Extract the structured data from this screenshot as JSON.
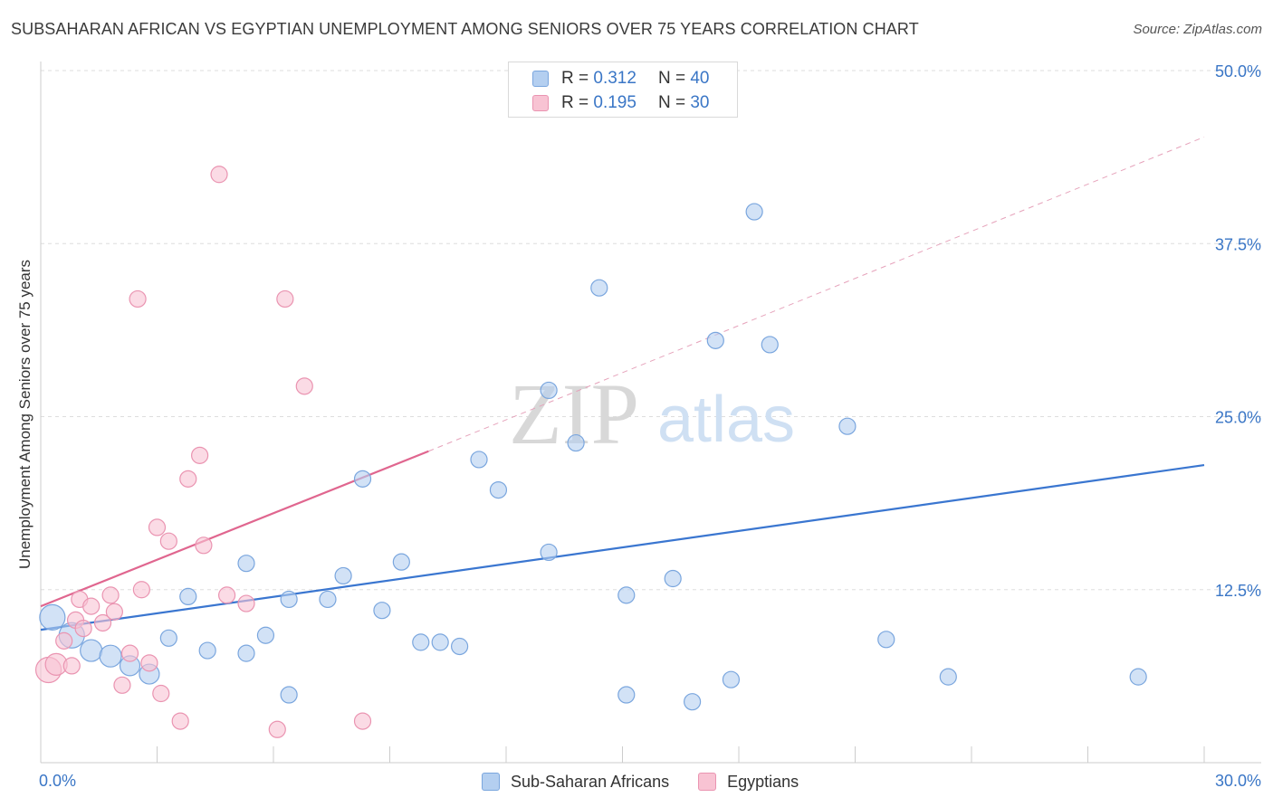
{
  "title": "SUBSAHARAN AFRICAN VS EGYPTIAN UNEMPLOYMENT AMONG SENIORS OVER 75 YEARS CORRELATION CHART",
  "source": "Source: ZipAtlas.com",
  "watermark": {
    "zip": "ZIP",
    "atlas": "atlas"
  },
  "legend": {
    "r_label": "R =",
    "n_label": "N =",
    "series": [
      {
        "r": "0.312",
        "n": "40"
      },
      {
        "r": "0.195",
        "n": "30"
      }
    ]
  },
  "chart_data": {
    "type": "scatter",
    "title": "SUBSAHARAN AFRICAN VS EGYPTIAN UNEMPLOYMENT AMONG SENIORS OVER 75 YEARS CORRELATION CHART",
    "xlabel": "",
    "ylabel": "Unemployment Among Seniors over 75 years",
    "xlim": [
      0,
      30
    ],
    "ylim": [
      0,
      50
    ],
    "x_tick_labels": [
      "0.0%",
      "30.0%"
    ],
    "y_ticks": [
      12.5,
      25,
      37.5,
      50
    ],
    "y_tick_labels": [
      "12.5%",
      "25.0%",
      "37.5%",
      "50.0%"
    ],
    "grid": true,
    "legend_position": "bottom",
    "colors": {
      "blue_fill": "#b4cff0",
      "blue_stroke": "#7aa6de",
      "blue_line": "#3a76d0",
      "pink_fill": "#f8c3d3",
      "pink_stroke": "#ea94b1",
      "pink_line": "#e0668f"
    },
    "series": [
      {
        "name": "Sub-Saharan Africans",
        "r": 0.312,
        "n": 40,
        "trend": {
          "x": [
            0,
            30
          ],
          "y": [
            9.6,
            21.5
          ],
          "dashed_extension": false
        },
        "points": [
          [
            0.3,
            10.5,
            14
          ],
          [
            0.8,
            9.2,
            14
          ],
          [
            1.3,
            8.1,
            12
          ],
          [
            1.8,
            7.7,
            12
          ],
          [
            2.3,
            7.0,
            11
          ],
          [
            2.8,
            6.4,
            11
          ],
          [
            3.3,
            9.0,
            9
          ],
          [
            3.8,
            12.0,
            9
          ],
          [
            4.3,
            8.1,
            9
          ],
          [
            5.3,
            14.4,
            9
          ],
          [
            5.3,
            7.9,
            9
          ],
          [
            5.8,
            9.2,
            9
          ],
          [
            6.4,
            4.9,
            9
          ],
          [
            6.4,
            11.8,
            9
          ],
          [
            7.4,
            11.8,
            9
          ],
          [
            7.8,
            13.5,
            9
          ],
          [
            8.3,
            20.5,
            9
          ],
          [
            8.8,
            11.0,
            9
          ],
          [
            9.3,
            14.5,
            9
          ],
          [
            9.8,
            8.7,
            9
          ],
          [
            10.3,
            8.7,
            9
          ],
          [
            10.8,
            8.4,
            9
          ],
          [
            11.3,
            21.9,
            9
          ],
          [
            11.8,
            19.7,
            9
          ],
          [
            13.1,
            15.2,
            9
          ],
          [
            13.1,
            26.9,
            9
          ],
          [
            13.8,
            23.1,
            9
          ],
          [
            14.4,
            34.3,
            9
          ],
          [
            15.1,
            12.1,
            9
          ],
          [
            15.1,
            4.9,
            9
          ],
          [
            16.3,
            13.3,
            9
          ],
          [
            16.8,
            4.4,
            9
          ],
          [
            17.4,
            30.5,
            9
          ],
          [
            17.8,
            6.0,
            9
          ],
          [
            18.4,
            39.8,
            9
          ],
          [
            18.8,
            30.2,
            9
          ],
          [
            20.8,
            24.3,
            9
          ],
          [
            21.8,
            8.9,
            9
          ],
          [
            23.4,
            6.2,
            9
          ],
          [
            28.3,
            6.2,
            9
          ]
        ]
      },
      {
        "name": "Egyptians",
        "r": 0.195,
        "n": 30,
        "trend": {
          "x": [
            0,
            10
          ],
          "y": [
            11.3,
            22.5
          ],
          "dashed_extension": true,
          "extended_to": [
            30,
            45.2
          ]
        },
        "points": [
          [
            0.2,
            6.7,
            14
          ],
          [
            0.4,
            7.1,
            12
          ],
          [
            0.6,
            8.8,
            9
          ],
          [
            0.8,
            7.0,
            9
          ],
          [
            0.9,
            10.3,
            9
          ],
          [
            1.0,
            11.8,
            9
          ],
          [
            1.1,
            9.7,
            9
          ],
          [
            1.3,
            11.3,
            9
          ],
          [
            1.6,
            10.1,
            9
          ],
          [
            1.8,
            12.1,
            9
          ],
          [
            1.9,
            10.9,
            9
          ],
          [
            2.1,
            5.6,
            9
          ],
          [
            2.3,
            7.9,
            9
          ],
          [
            2.5,
            33.5,
            9
          ],
          [
            2.6,
            12.5,
            9
          ],
          [
            2.8,
            7.2,
            9
          ],
          [
            3.0,
            17.0,
            9
          ],
          [
            3.1,
            5.0,
            9
          ],
          [
            3.3,
            16.0,
            9
          ],
          [
            3.6,
            3.0,
            9
          ],
          [
            3.8,
            20.5,
            9
          ],
          [
            4.1,
            22.2,
            9
          ],
          [
            4.2,
            15.7,
            9
          ],
          [
            4.6,
            42.5,
            9
          ],
          [
            4.8,
            12.1,
            9
          ],
          [
            5.3,
            11.5,
            9
          ],
          [
            6.1,
            2.4,
            9
          ],
          [
            6.3,
            33.5,
            9
          ],
          [
            6.8,
            27.2,
            9
          ],
          [
            8.3,
            3.0,
            9
          ]
        ]
      }
    ]
  }
}
